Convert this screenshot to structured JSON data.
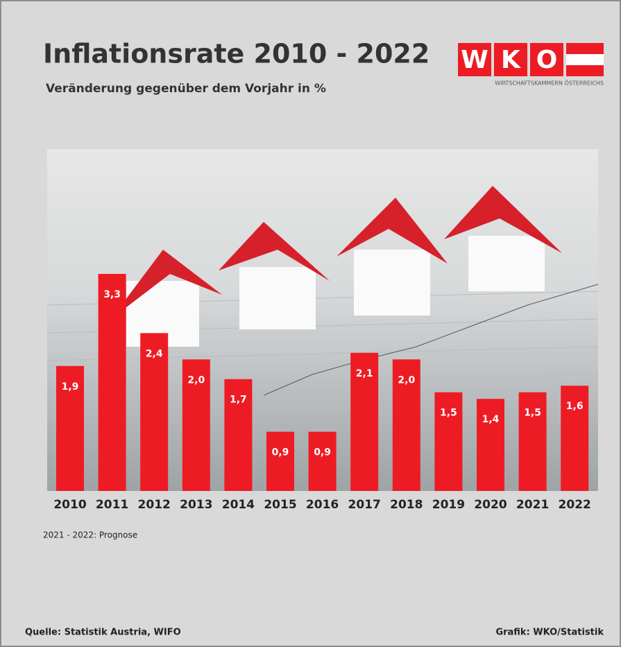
{
  "chart_data": {
    "type": "bar",
    "title": "Inflationsrate 2010 - 2022",
    "subtitle": "Veränderung gegenüber dem Vorjahr in %",
    "categories": [
      "2010",
      "2011",
      "2012",
      "2013",
      "2014",
      "2015",
      "2016",
      "2017",
      "2018",
      "2019",
      "2020",
      "2021",
      "2022"
    ],
    "values": [
      1.9,
      3.3,
      2.4,
      2.0,
      1.7,
      0.9,
      0.9,
      2.1,
      2.0,
      1.5,
      1.4,
      1.5,
      1.6
    ],
    "value_labels": [
      "1,9",
      "3,3",
      "2,4",
      "2,0",
      "1,7",
      "0,9",
      "0,9",
      "2,1",
      "2,0",
      "1,5",
      "1,4",
      "1,5",
      "1,6"
    ],
    "color": "#ed1c24",
    "ylim": [
      0,
      3.5
    ],
    "note": "2021 - 2022: Prognose",
    "source": "Quelle: Statistik Austria, WIFO",
    "credit": "Grafik: WKO/Statistik"
  },
  "logo": {
    "letters": [
      "W",
      "K",
      "O"
    ],
    "tagline": "WIRTSCHAFTSKAMMERN ÖSTERREICHS"
  }
}
